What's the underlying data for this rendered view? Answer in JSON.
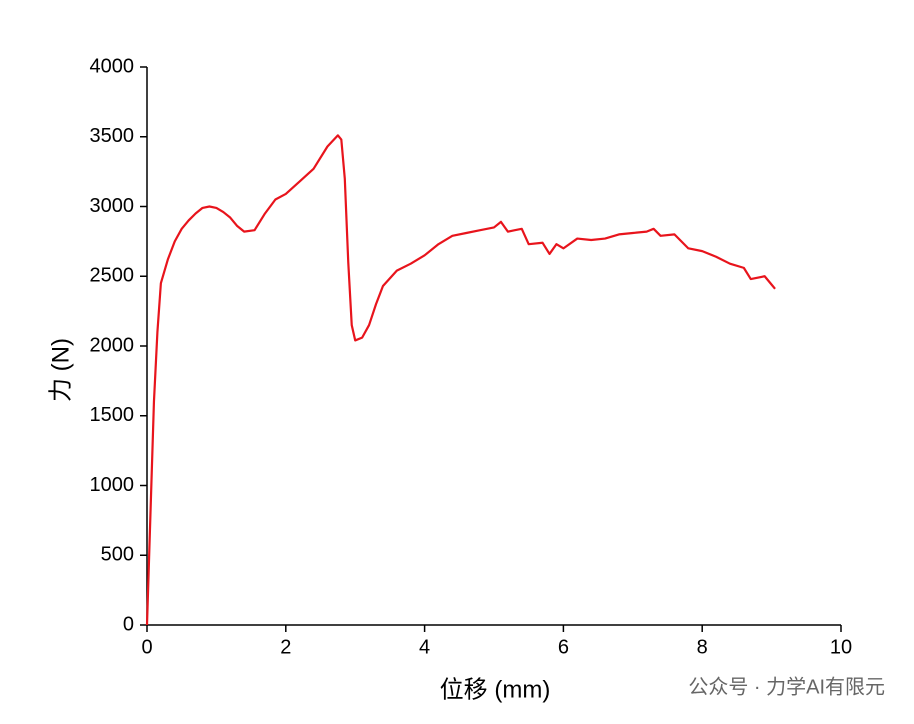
{
  "chart_data": {
    "type": "line",
    "xlabel": "位移 (mm)",
    "ylabel": "力 (N)",
    "annotation": "公众号 · 力学AI有限元",
    "xlim": [
      0,
      10
    ],
    "xticks": [
      0,
      2,
      4,
      6,
      8,
      10
    ],
    "ylim": [
      0,
      4000
    ],
    "yticks": [
      0,
      500,
      1000,
      1500,
      2000,
      2500,
      3000,
      3500,
      4000
    ],
    "grid": false,
    "series": [
      {
        "color": "#e8141c",
        "x": [
          0,
          0.05,
          0.1,
          0.15,
          0.2,
          0.3,
          0.4,
          0.5,
          0.6,
          0.7,
          0.8,
          0.9,
          1.0,
          1.1,
          1.2,
          1.3,
          1.4,
          1.55,
          1.7,
          1.85,
          2.0,
          2.2,
          2.4,
          2.6,
          2.75,
          2.8,
          2.85,
          2.9,
          2.95,
          3.0,
          3.1,
          3.2,
          3.3,
          3.4,
          3.6,
          3.8,
          4.0,
          4.2,
          4.4,
          4.6,
          4.8,
          5.0,
          5.1,
          5.2,
          5.3,
          5.4,
          5.5,
          5.7,
          5.8,
          5.9,
          6.0,
          6.2,
          6.4,
          6.6,
          6.8,
          7.0,
          7.2,
          7.3,
          7.4,
          7.6,
          7.8,
          8.0,
          8.2,
          8.4,
          8.6,
          8.7,
          8.9,
          9.0,
          9.05
        ],
        "values": [
          0,
          800,
          1600,
          2100,
          2450,
          2620,
          2750,
          2840,
          2900,
          2950,
          2990,
          3000,
          2990,
          2960,
          2920,
          2860,
          2820,
          2830,
          2950,
          3050,
          3090,
          3180,
          3270,
          3430,
          3510,
          3480,
          3200,
          2600,
          2150,
          2040,
          2060,
          2150,
          2300,
          2430,
          2540,
          2590,
          2650,
          2730,
          2790,
          2810,
          2830,
          2850,
          2890,
          2820,
          2830,
          2840,
          2730,
          2740,
          2660,
          2730,
          2700,
          2770,
          2760,
          2770,
          2800,
          2810,
          2820,
          2840,
          2790,
          2800,
          2700,
          2680,
          2640,
          2590,
          2560,
          2480,
          2500,
          2440,
          2410
        ]
      }
    ]
  }
}
